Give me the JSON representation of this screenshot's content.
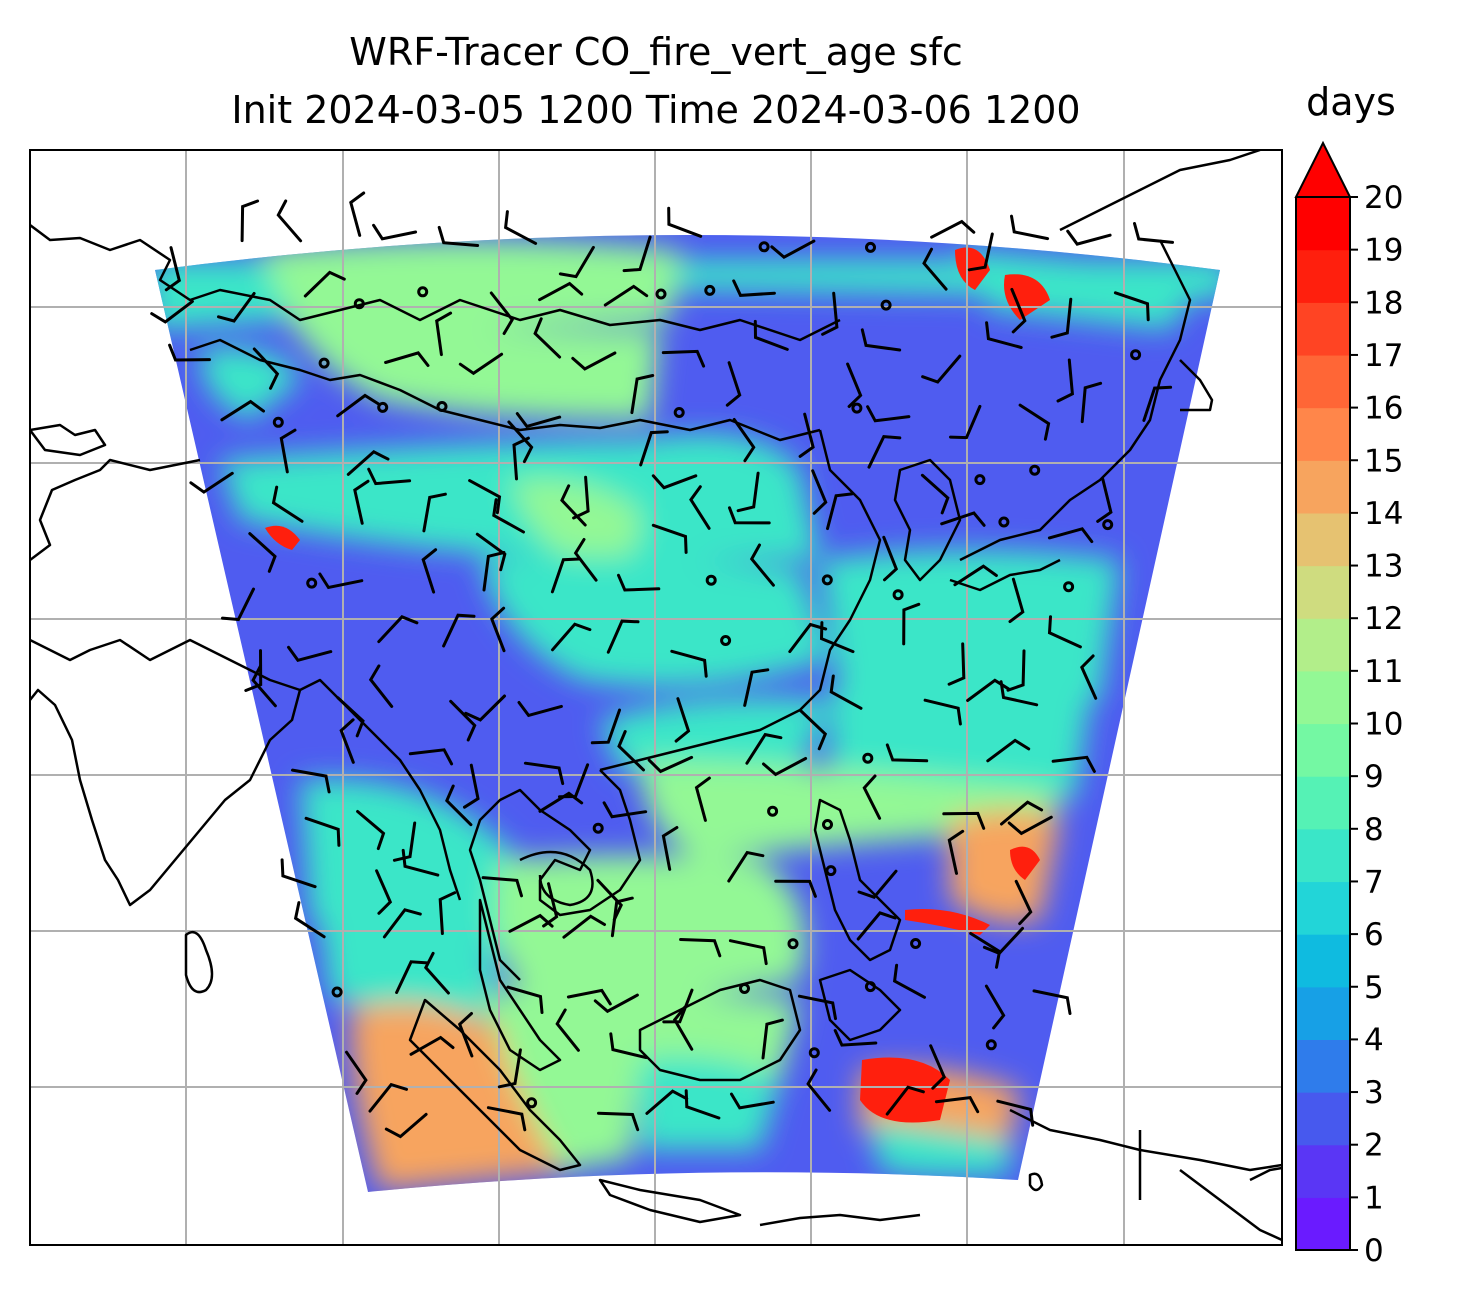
{
  "title": {
    "line1": "WRF-Tracer CO_fire_vert_age sfc",
    "line2": "Init 2024-03-05 1200 Time 2024-03-06 1200"
  },
  "colorbar": {
    "label": "days",
    "min": 0,
    "max": 20,
    "ticks": [
      "0",
      "1",
      "2",
      "3",
      "4",
      "5",
      "6",
      "7",
      "8",
      "9",
      "10",
      "11",
      "12",
      "13",
      "14",
      "15",
      "16",
      "17",
      "18",
      "19",
      "20"
    ],
    "colors": [
      "#6a1bff",
      "#5a36f5",
      "#4759ee",
      "#2f7ceb",
      "#17a0e6",
      "#0fbbe0",
      "#22d5d8",
      "#3ae6c8",
      "#55f2b5",
      "#74f8a3",
      "#93f895",
      "#b2ee8a",
      "#cfdc7f",
      "#e6c271",
      "#f7a45e",
      "#ff864a",
      "#ff6636",
      "#ff4423",
      "#ff1f0d",
      "#ff0000"
    ],
    "extend": "max"
  },
  "map": {
    "gridlines": true,
    "field_colors": {
      "background": "#4f5cf0",
      "low": "#6a1bff",
      "mid": "#3ae6c8",
      "high": "#93f895",
      "warm": "#f7a45e",
      "hot": "#ff1f0d"
    }
  }
}
